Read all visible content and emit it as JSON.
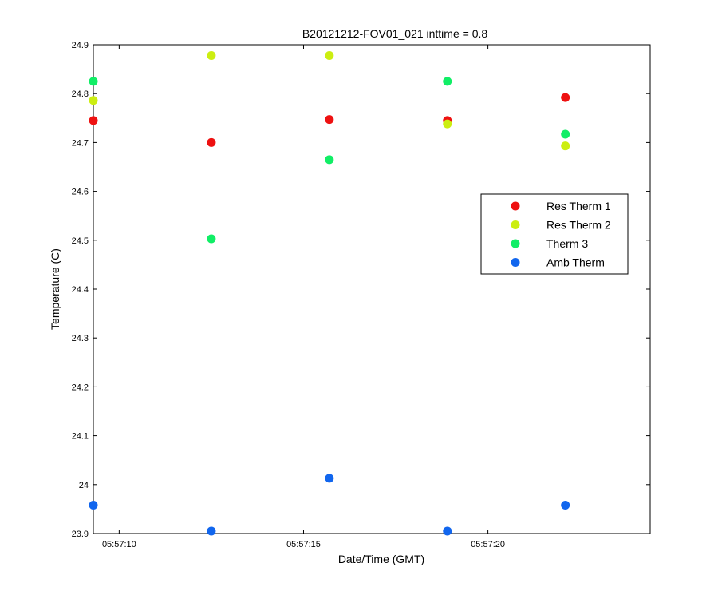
{
  "chart_data": {
    "type": "scatter",
    "title": "B20121212-FOV01_021 inttime = 0.8",
    "xlabel": "Date/Time (GMT)",
    "ylabel": "Temperature (C)",
    "xlim": [
      "05:57:09.3",
      "05:57:24.4"
    ],
    "ylim": [
      23.9,
      24.9
    ],
    "x_ticks": [
      {
        "value": "05:57:10",
        "label": "05:57:10"
      },
      {
        "value": "05:57:15",
        "label": "05:57:15"
      },
      {
        "value": "05:57:20",
        "label": "05:57:20"
      }
    ],
    "y_ticks": [
      {
        "value": 23.9,
        "label": "23.9"
      },
      {
        "value": 24.0,
        "label": "24"
      },
      {
        "value": 24.1,
        "label": "24.1"
      },
      {
        "value": 24.2,
        "label": "24.2"
      },
      {
        "value": 24.3,
        "label": "24.3"
      },
      {
        "value": 24.4,
        "label": "24.4"
      },
      {
        "value": 24.5,
        "label": "24.5"
      },
      {
        "value": 24.6,
        "label": "24.6"
      },
      {
        "value": 24.7,
        "label": "24.7"
      },
      {
        "value": 24.8,
        "label": "24.8"
      },
      {
        "value": 24.9,
        "label": "24.9"
      }
    ],
    "x": [
      "05:57:09.3",
      "05:57:12.5",
      "05:57:15.7",
      "05:57:18.9",
      "05:57:22.1"
    ],
    "series": [
      {
        "name": "Res Therm 1",
        "color": "#ee1111",
        "values": [
          24.745,
          24.7,
          24.747,
          24.745,
          24.792
        ]
      },
      {
        "name": "Res Therm 2",
        "color": "#ccee11",
        "values": [
          24.786,
          24.878,
          24.878,
          24.738,
          24.693
        ]
      },
      {
        "name": "Therm 3",
        "color": "#11ee66",
        "values": [
          24.825,
          24.503,
          24.665,
          24.825,
          24.717
        ]
      },
      {
        "name": "Amb Therm",
        "color": "#1166ee",
        "values": [
          23.958,
          23.905,
          24.013,
          23.905,
          23.958
        ]
      }
    ],
    "legend_position": "right",
    "grid": false
  }
}
